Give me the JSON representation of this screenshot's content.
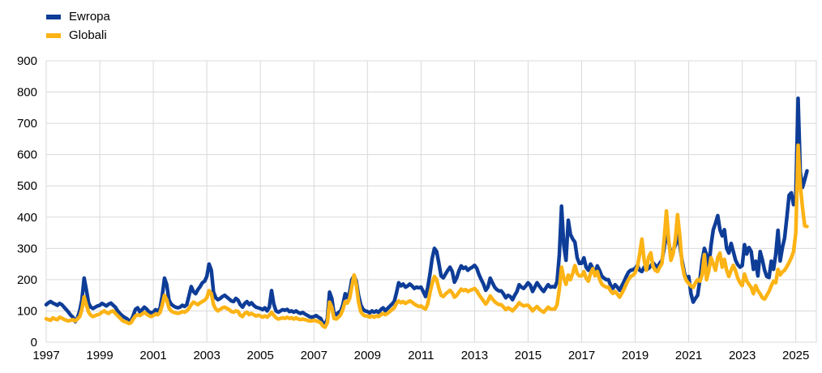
{
  "chart_data": {
    "type": "line",
    "title": "",
    "xlabel": "",
    "ylabel": "",
    "frequency": "monthly",
    "x_start": "1997-01",
    "x_end": "2025-06",
    "x_tick_labels": [
      "1997",
      "1999",
      "2001",
      "2003",
      "2005",
      "2007",
      "2009",
      "2011",
      "2013",
      "2015",
      "2017",
      "2019",
      "2021",
      "2023",
      "2025"
    ],
    "y_ticks": [
      0,
      100,
      200,
      300,
      400,
      500,
      600,
      700,
      800,
      900
    ],
    "ylim": [
      0,
      900
    ],
    "grid": true,
    "legend_position": "top-left",
    "gridline_color": "#d9d9d9",
    "series": [
      {
        "name": "Ewropa",
        "color": "#0e3d98",
        "values": [
          120,
          126,
          130,
          125,
          122,
          118,
          124,
          120,
          112,
          104,
          96,
          86,
          80,
          66,
          78,
          100,
          135,
          205,
          168,
          125,
          112,
          108,
          112,
          116,
          118,
          124,
          120,
          116,
          122,
          125,
          118,
          112,
          100,
          92,
          85,
          80,
          76,
          70,
          68,
          85,
          105,
          110,
          96,
          104,
          112,
          106,
          98,
          94,
          96,
          104,
          100,
          108,
          148,
          205,
          185,
          135,
          122,
          116,
          112,
          110,
          112,
          118,
          114,
          120,
          148,
          178,
          162,
          155,
          168,
          178,
          190,
          195,
          210,
          250,
          230,
          160,
          142,
          136,
          140,
          146,
          150,
          144,
          138,
          132,
          130,
          140,
          134,
          120,
          112,
          124,
          130,
          120,
          126,
          118,
          112,
          110,
          108,
          104,
          110,
          100,
          112,
          165,
          122,
          100,
          96,
          100,
          104,
          102,
          105,
          98,
          100,
          96,
          100,
          95,
          92,
          95,
          90,
          86,
          82,
          80,
          82,
          85,
          80,
          76,
          62,
          56,
          75,
          160,
          140,
          92,
          88,
          95,
          100,
          120,
          155,
          142,
          160,
          200,
          212,
          195,
          150,
          120,
          105,
          100,
          98,
          94,
          100,
          96,
          100,
          95,
          104,
          110,
          100,
          108,
          115,
          122,
          130,
          158,
          190,
          180,
          186,
          176,
          180,
          186,
          180,
          172,
          176,
          174,
          176,
          162,
          146,
          174,
          218,
          268,
          300,
          290,
          252,
          212,
          206,
          218,
          230,
          240,
          226,
          192,
          206,
          228,
          244,
          236,
          240,
          230,
          236,
          240,
          246,
          236,
          216,
          200,
          186,
          166,
          176,
          205,
          190,
          176,
          168,
          164,
          164,
          154,
          142,
          150,
          146,
          136,
          150,
          162,
          184,
          176,
          172,
          180,
          190,
          182,
          162,
          176,
          190,
          180,
          170,
          162,
          174,
          184,
          176,
          178,
          176,
          194,
          280,
          435,
          310,
          262,
          390,
          345,
          330,
          320,
          270,
          252,
          252,
          270,
          240,
          230,
          250,
          236,
          222,
          244,
          230,
          212,
          205,
          200,
          200,
          182,
          172,
          184,
          176,
          166,
          180,
          194,
          210,
          224,
          230,
          232,
          236,
          246,
          230,
          226,
          240,
          232,
          236,
          244,
          254,
          246,
          240,
          252,
          262,
          300,
          358,
          320,
          282,
          294,
          310,
          344,
          310,
          262,
          224,
          200,
          210,
          155,
          128,
          140,
          150,
          200,
          260,
          300,
          280,
          240,
          310,
          360,
          380,
          405,
          360,
          340,
          360,
          300,
          285,
          316,
          290,
          262,
          248,
          240,
          245,
          312,
          282,
          303,
          290,
          233,
          259,
          212,
          290,
          264,
          230,
          210,
          207,
          259,
          233,
          280,
          358,
          260,
          303,
          334,
          400,
          470,
          478,
          440,
          470,
          780,
          545,
          495,
          520,
          548
        ]
      },
      {
        "name": "Globali",
        "color": "#fcb315",
        "values": [
          75,
          72,
          70,
          78,
          74,
          72,
          80,
          77,
          73,
          70,
          68,
          70,
          72,
          68,
          74,
          82,
          104,
          145,
          120,
          96,
          86,
          82,
          85,
          88,
          90,
          96,
          100,
          95,
          92,
          98,
          100,
          92,
          85,
          78,
          70,
          66,
          64,
          60,
          62,
          74,
          84,
          88,
          85,
          90,
          95,
          90,
          85,
          82,
          85,
          90,
          88,
          95,
          118,
          150,
          136,
          110,
          100,
          96,
          94,
          92,
          94,
          98,
          96,
          100,
          108,
          120,
          128,
          124,
          120,
          126,
          130,
          134,
          142,
          165,
          155,
          120,
          106,
          100,
          105,
          110,
          112,
          108,
          104,
          98,
          96,
          100,
          98,
          86,
          82,
          92,
          96,
          88,
          92,
          88,
          84,
          86,
          84,
          80,
          84,
          80,
          86,
          96,
          86,
          78,
          74,
          76,
          78,
          76,
          80,
          76,
          78,
          74,
          78,
          74,
          72,
          74,
          72,
          70,
          68,
          68,
          70,
          68,
          66,
          62,
          52,
          48,
          62,
          128,
          112,
          76,
          74,
          80,
          88,
          105,
          130,
          125,
          140,
          178,
          215,
          185,
          128,
          98,
          88,
          84,
          84,
          80,
          84,
          80,
          84,
          82,
          88,
          92,
          88,
          92,
          98,
          104,
          110,
          124,
          132,
          126,
          130,
          124,
          128,
          132,
          128,
          122,
          118,
          114,
          116,
          110,
          106,
          122,
          158,
          188,
          210,
          200,
          172,
          150,
          146,
          154,
          160,
          166,
          158,
          144,
          150,
          160,
          170,
          165,
          168,
          162,
          166,
          168,
          172,
          164,
          152,
          142,
          132,
          122,
          132,
          148,
          138,
          130,
          124,
          120,
          120,
          112,
          104,
          110,
          106,
          100,
          108,
          116,
          126,
          120,
          116,
          118,
          118,
          110,
          100,
          108,
          114,
          106,
          100,
          96,
          104,
          112,
          106,
          106,
          106,
          120,
          170,
          240,
          205,
          185,
          215,
          200,
          220,
          245,
          220,
          212,
          212,
          226,
          205,
          195,
          220,
          235,
          212,
          226,
          202,
          186,
          180,
          176,
          176,
          164,
          156,
          162,
          154,
          144,
          156,
          170,
          186,
          200,
          210,
          214,
          222,
          242,
          282,
          330,
          262,
          230,
          272,
          286,
          242,
          230,
          226,
          240,
          252,
          330,
          420,
          330,
          262,
          282,
          330,
          408,
          340,
          252,
          214,
          196,
          188,
          180,
          175,
          190,
          200,
          195,
          215,
          280,
          200,
          230,
          270,
          250,
          230,
          270,
          285,
          240,
          265,
          230,
          210,
          230,
          246,
          228,
          205,
          190,
          181,
          218,
          196,
          185,
          175,
          155,
          181,
          165,
          155,
          142,
          138,
          150,
          163,
          180,
          195,
          190,
          233,
          215,
          225,
          230,
          242,
          255,
          270,
          290,
          350,
          630,
          500,
          430,
          372,
          370
        ]
      }
    ]
  },
  "legend": {
    "items": [
      {
        "label": "Ewropa",
        "color": "#0e3d98"
      },
      {
        "label": "Globali",
        "color": "#fcb315"
      }
    ]
  }
}
